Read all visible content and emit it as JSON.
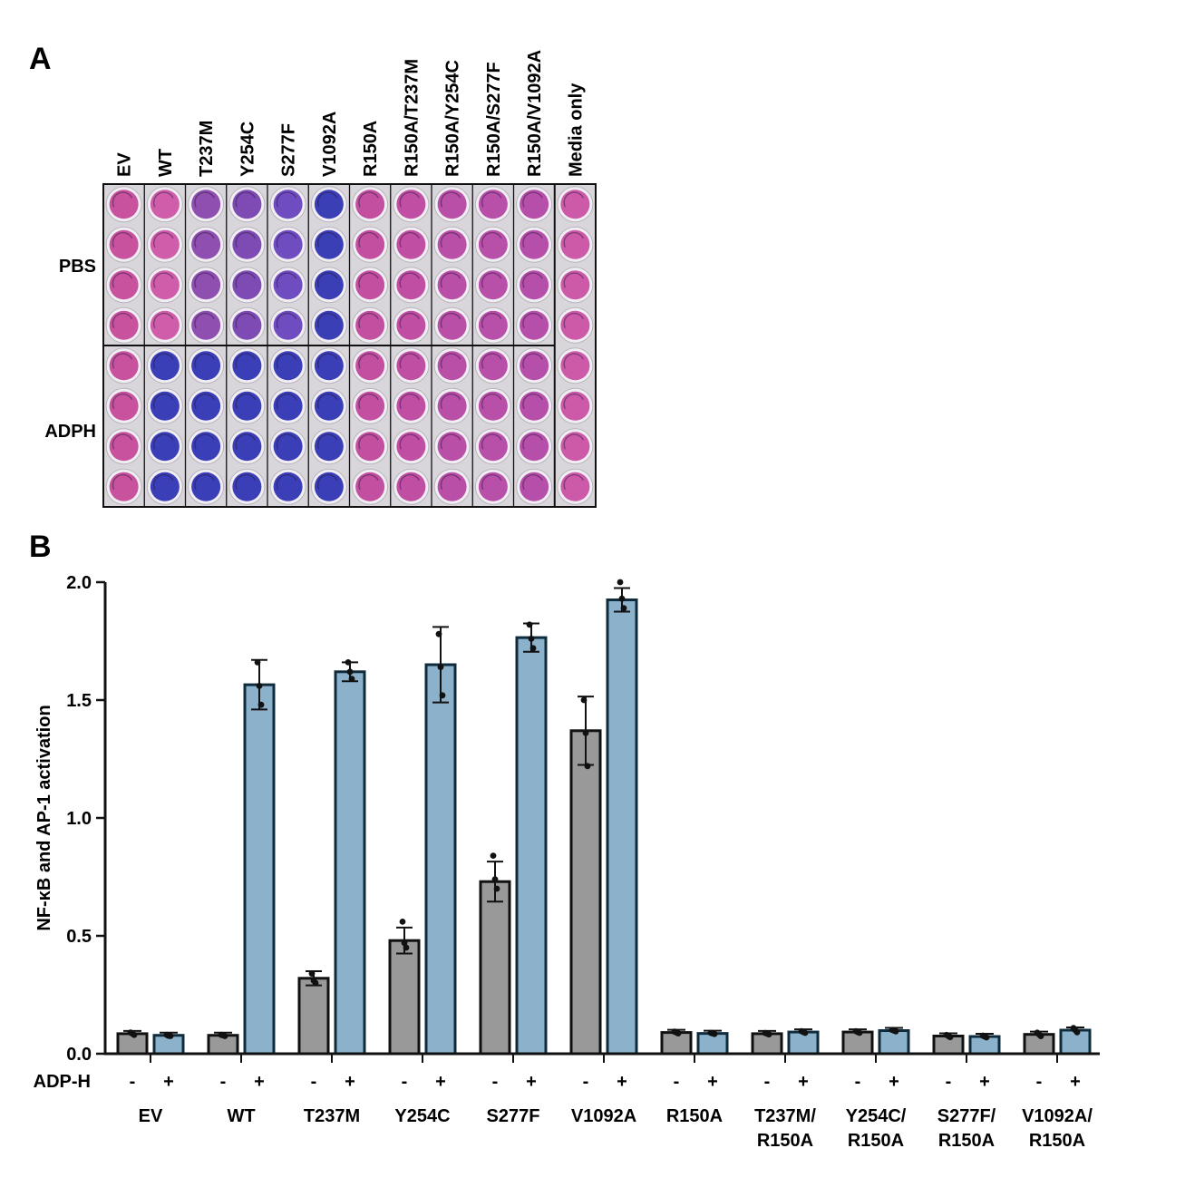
{
  "panel_a": {
    "label": "A",
    "column_labels": [
      "EV",
      "WT",
      "T237M",
      "Y254C",
      "S277F",
      "V1092A",
      "R150A",
      "R150A/T237M",
      "R150A/Y254C",
      "R150A/S277F",
      "R150A/V1092A",
      "Media only"
    ],
    "row_groups": [
      {
        "label": "PBS",
        "rows": 4
      },
      {
        "label": "ADPH",
        "rows": 4
      }
    ],
    "well_colors": {
      "pbs": [
        "#c8529e",
        "#cf5da9",
        "#8e4fb0",
        "#7e4bb4",
        "#6f4cc0",
        "#3b3fb6",
        "#c34fa0",
        "#c04fa4",
        "#b94fa7",
        "#b84fa8",
        "#b64fa9",
        "#cc5aa8"
      ],
      "adph": [
        "#c8529e",
        "#3a3fb7",
        "#3a3fb7",
        "#3a3fb7",
        "#3a3fb7",
        "#3a3fb7",
        "#c34fa0",
        "#c04fa4",
        "#b94fa7",
        "#b84fa8",
        "#b64fa9",
        "#cc5aa8"
      ]
    },
    "colors": {
      "plate_bg": "#d8d6da",
      "grid": "#111111"
    }
  },
  "chart_data": {
    "label": "B",
    "type": "bar",
    "ylabel": "NF-κB and AP-1 activation",
    "ylim": [
      0,
      2.0
    ],
    "yticks": [
      "0.0",
      "0.5",
      "1.0",
      "1.5",
      "2.0"
    ],
    "treatment_label": "ADP-H",
    "treatment_signs": [
      "-",
      "+"
    ],
    "categories": [
      {
        "line1": "EV",
        "line2": ""
      },
      {
        "line1": "WT",
        "line2": ""
      },
      {
        "line1": "T237M",
        "line2": ""
      },
      {
        "line1": "Y254C",
        "line2": ""
      },
      {
        "line1": "S277F",
        "line2": ""
      },
      {
        "line1": "V1092A",
        "line2": ""
      },
      {
        "line1": "R150A",
        "line2": ""
      },
      {
        "line1": "T237M/",
        "line2": "R150A"
      },
      {
        "line1": "Y254C/",
        "line2": "R150A"
      },
      {
        "line1": "S277F/",
        "line2": "R150A"
      },
      {
        "line1": "V1092A/",
        "line2": "R150A"
      }
    ],
    "series": [
      {
        "color": "#999999",
        "edge": "#111111",
        "values": [
          0.085,
          0.078,
          0.32,
          0.48,
          0.73,
          1.37,
          0.09,
          0.085,
          0.092,
          0.075,
          0.082
        ],
        "errors": [
          0.008,
          0.005,
          0.03,
          0.055,
          0.085,
          0.145,
          0.006,
          0.005,
          0.006,
          0.008,
          0.012
        ],
        "points": [
          [
            0.09,
            0.085,
            0.08
          ],
          [
            0.08,
            0.078,
            0.075
          ],
          [
            0.34,
            0.31,
            0.3
          ],
          [
            0.56,
            0.47,
            0.45
          ],
          [
            0.84,
            0.74,
            0.7
          ],
          [
            1.5,
            1.36,
            1.22
          ]
        ]
      },
      {
        "color": "#8cb1ca",
        "edge": "#0f2b3c",
        "values": [
          0.078,
          1.565,
          1.62,
          1.65,
          1.765,
          1.925,
          0.086,
          0.092,
          0.098,
          0.073,
          0.1
        ],
        "errors": [
          0.006,
          0.105,
          0.04,
          0.16,
          0.06,
          0.05,
          0.004,
          0.006,
          0.005,
          0.006,
          0.015
        ],
        "points": [
          [
            0.08,
            0.076,
            0.075
          ],
          [
            1.66,
            1.56,
            1.48
          ],
          [
            1.66,
            1.62,
            1.59
          ],
          [
            1.78,
            1.64,
            1.52
          ],
          [
            1.82,
            1.76,
            1.72
          ],
          [
            2.0,
            1.93,
            1.89
          ]
        ]
      }
    ]
  }
}
